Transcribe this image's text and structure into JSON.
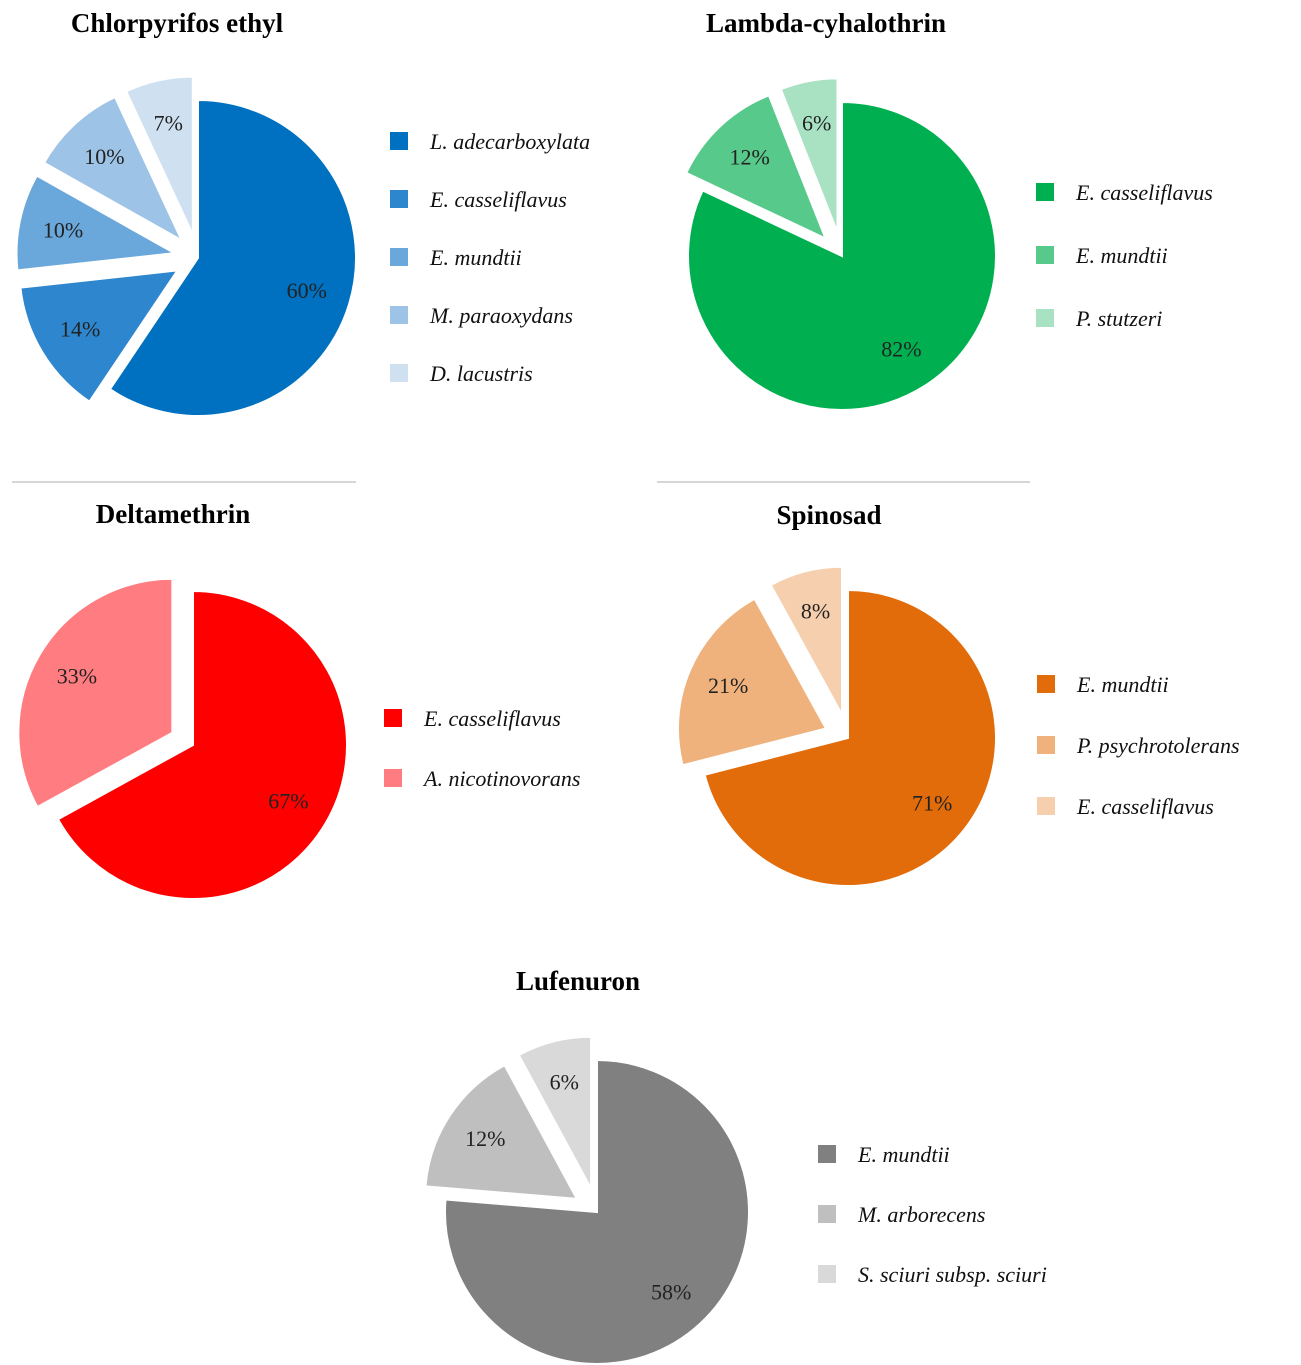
{
  "chart_data": [
    {
      "type": "pie",
      "title": "Chlorpyrifos ethyl",
      "slices": [
        {
          "name": "L. adecarboxylata",
          "value": 60,
          "label": "60%",
          "color": "#0070C0"
        },
        {
          "name": "E. casseliflavus",
          "value": 14,
          "label": "14%",
          "color": "#2E86CE"
        },
        {
          "name": "E. mundtii",
          "value": 10,
          "label": "10%",
          "color": "#6AA7DA"
        },
        {
          "name": "M. paraoxydans",
          "value": 10,
          "label": "10%",
          "color": "#9DC3E6"
        },
        {
          "name": "D. lacustris",
          "value": 7,
          "label": "7%",
          "color": "#CFE0F1"
        }
      ]
    },
    {
      "type": "pie",
      "title": "Lambda-cyhalothrin",
      "slices": [
        {
          "name": "E. casseliflavus",
          "value": 82,
          "label": "82%",
          "color": "#00B050"
        },
        {
          "name": "E. mundtii",
          "value": 12,
          "label": "12%",
          "color": "#57C98B"
        },
        {
          "name": "P. stutzeri",
          "value": 6,
          "label": "6%",
          "color": "#A9E2C3"
        }
      ]
    },
    {
      "type": "pie",
      "title": "Deltamethrin",
      "slices": [
        {
          "name": "E. casseliflavus",
          "value": 67,
          "label": "67%",
          "color": "#FF0000"
        },
        {
          "name": "A. nicotinovorans",
          "value": 33,
          "label": "33%",
          "color": "#FF7C80"
        }
      ]
    },
    {
      "type": "pie",
      "title": "Spinosad",
      "slices": [
        {
          "name": "E. mundtii",
          "value": 71,
          "label": "71%",
          "color": "#E26B0A"
        },
        {
          "name": "P. psychrotolerans",
          "value": 21,
          "label": "21%",
          "color": "#EFB27D"
        },
        {
          "name": "E. casseliflavus",
          "value": 8,
          "label": "8%",
          "color": "#F6D0AE"
        }
      ]
    },
    {
      "type": "pie",
      "title": "Lufenuron",
      "slices": [
        {
          "name": "E. mundtii",
          "value": 58,
          "label": "58%",
          "color": "#808080"
        },
        {
          "name": "M. arborecens",
          "value": 12,
          "label": "12%",
          "color": "#BFBFBF"
        },
        {
          "name": "S. sciuri subsp. sciuri",
          "value": 6,
          "label": "6%",
          "color": "#D9D9D9"
        }
      ]
    }
  ]
}
